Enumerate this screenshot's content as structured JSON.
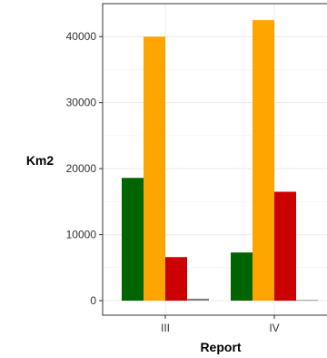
{
  "chart_data": {
    "type": "bar",
    "title": "",
    "xlabel": "Report",
    "ylabel": "Km2",
    "categories": [
      "III",
      "IV"
    ],
    "ylim": [
      -2200,
      45000
    ],
    "yticks": [
      0,
      10000,
      20000,
      30000,
      40000
    ],
    "ytick_labels": [
      "0",
      "10000",
      "20000",
      "30000",
      "40000"
    ],
    "grid": true,
    "legend": "none",
    "series": [
      {
        "color": "#006400",
        "values": [
          18600,
          7300
        ]
      },
      {
        "color": "#FFA500",
        "values": [
          40000,
          42500
        ]
      },
      {
        "color": "#CC0000",
        "values": [
          6600,
          16500
        ]
      },
      {
        "color": "#808080",
        "values": [
          300,
          100
        ]
      }
    ]
  }
}
